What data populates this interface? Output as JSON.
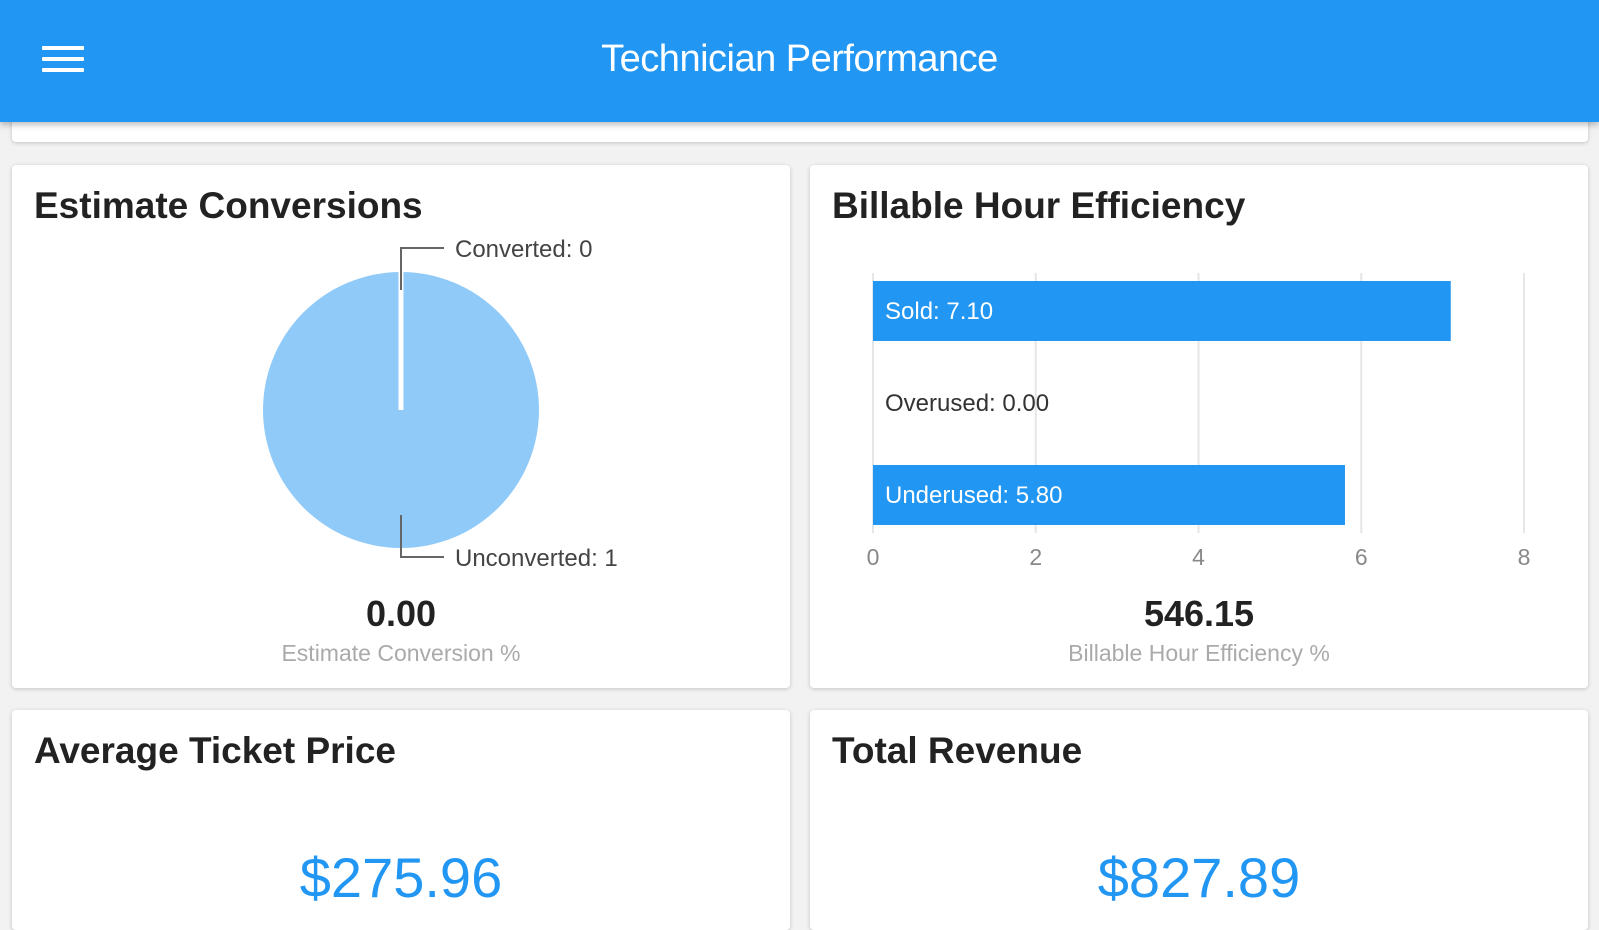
{
  "header": {
    "title": "Technician Performance",
    "menu_icon": "hamburger-menu-icon"
  },
  "estimate_conversions": {
    "title": "Estimate Conversions",
    "value": "0.00",
    "caption": "Estimate Conversion %",
    "chart_data": {
      "type": "pie",
      "slices": [
        {
          "label": "Converted: 0",
          "name": "Converted",
          "value": 0
        },
        {
          "label": "Unconverted: 1",
          "name": "Unconverted",
          "value": 1
        }
      ],
      "color": "#90caf9"
    }
  },
  "billable_hours": {
    "title": "Billable Hour Efficiency",
    "value": "546.15",
    "caption": "Billable Hour Efficiency %",
    "chart_data": {
      "type": "bar",
      "orientation": "horizontal",
      "categories": [
        "Sold",
        "Overused",
        "Underused"
      ],
      "labels": [
        "Sold: 7.10",
        "Overused: 0.00",
        "Underused: 5.80"
      ],
      "values": [
        7.1,
        0.0,
        5.8
      ],
      "xlim": [
        0,
        8
      ],
      "ticks": [
        "0",
        "2",
        "4",
        "6",
        "8"
      ],
      "color": "#2196f3"
    }
  },
  "average_ticket": {
    "title": "Average Ticket Price",
    "value": "$275.96"
  },
  "total_revenue": {
    "title": "Total Revenue",
    "value": "$827.89"
  }
}
